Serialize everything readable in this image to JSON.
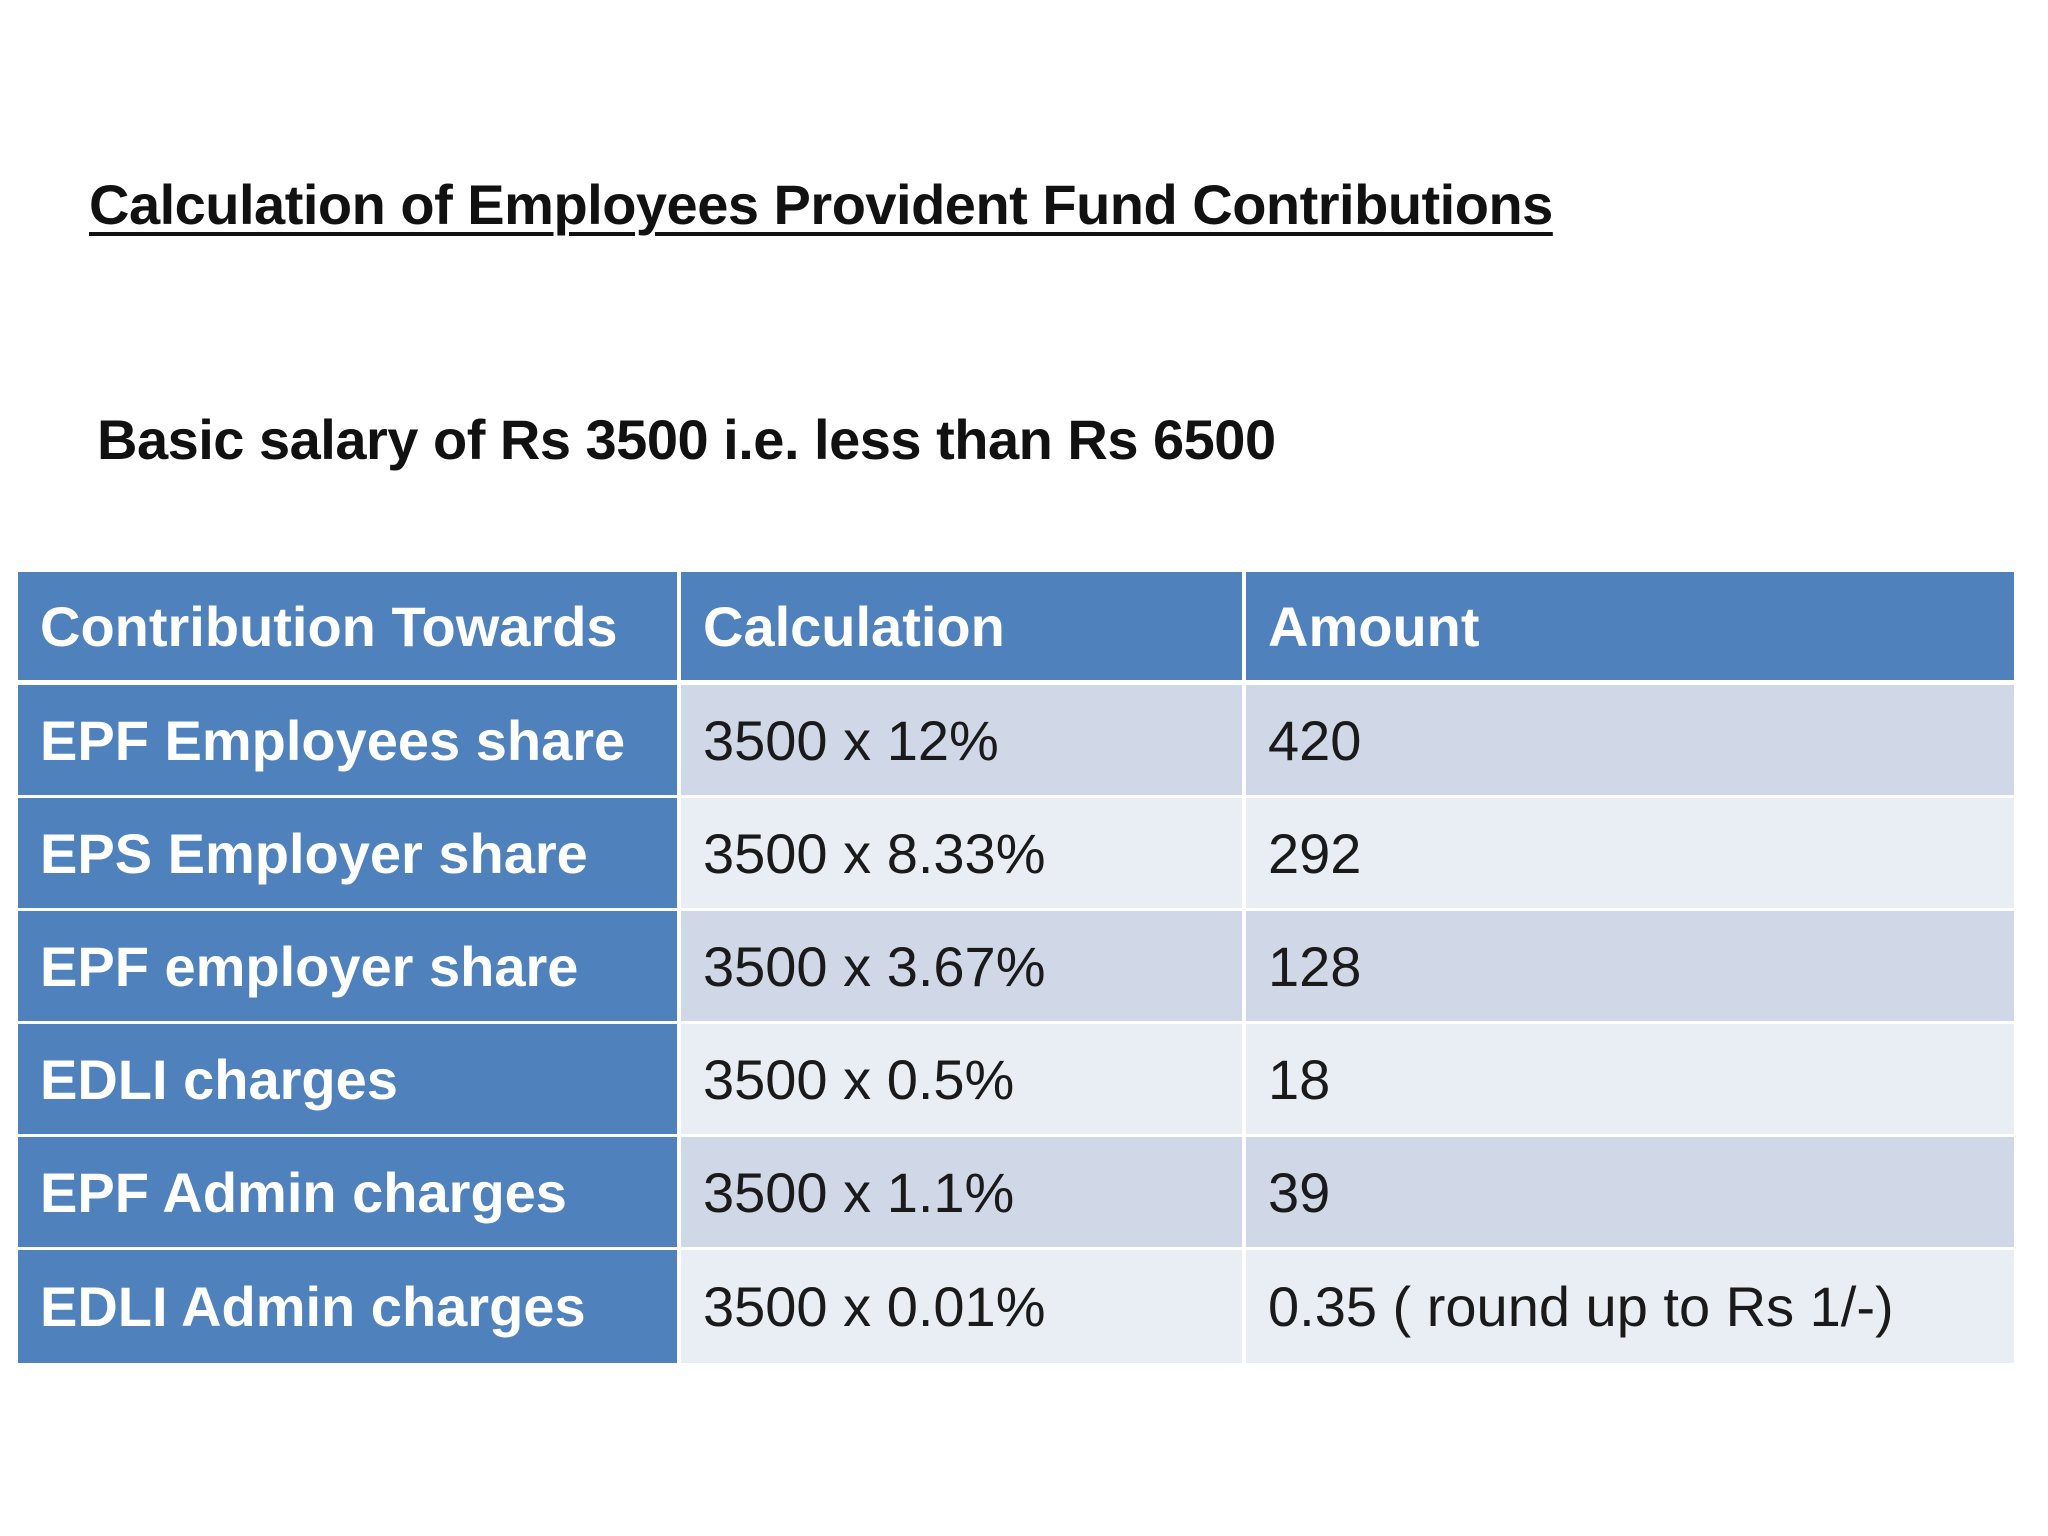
{
  "title": "Calculation of Employees Provident Fund Contributions",
  "subtitle": "Basic salary of Rs 3500 i.e. less than Rs 6500",
  "table": {
    "headers": [
      "Contribution Towards",
      "Calculation",
      "Amount"
    ],
    "rows": [
      {
        "label": "EPF Employees share",
        "calculation": "3500 x 12%",
        "amount": "420"
      },
      {
        "label": "EPS Employer share",
        "calculation": "3500 x 8.33%",
        "amount": "292"
      },
      {
        "label": "EPF employer share",
        "calculation": "3500 x 3.67%",
        "amount": "128"
      },
      {
        "label": "EDLI charges",
        "calculation": "3500 x 0.5%",
        "amount": "18"
      },
      {
        "label": "EPF Admin charges",
        "calculation": "3500 x 1.1%",
        "amount": "39"
      },
      {
        "label": "EDLI Admin charges",
        "calculation": "3500 x 0.01%",
        "amount": "0.35 ( round up to Rs 1/-)"
      }
    ]
  },
  "colors": {
    "header_fill": "#4f81bd",
    "row_odd_fill": "#d0d8e8",
    "row_even_fill": "#e9edf4"
  }
}
